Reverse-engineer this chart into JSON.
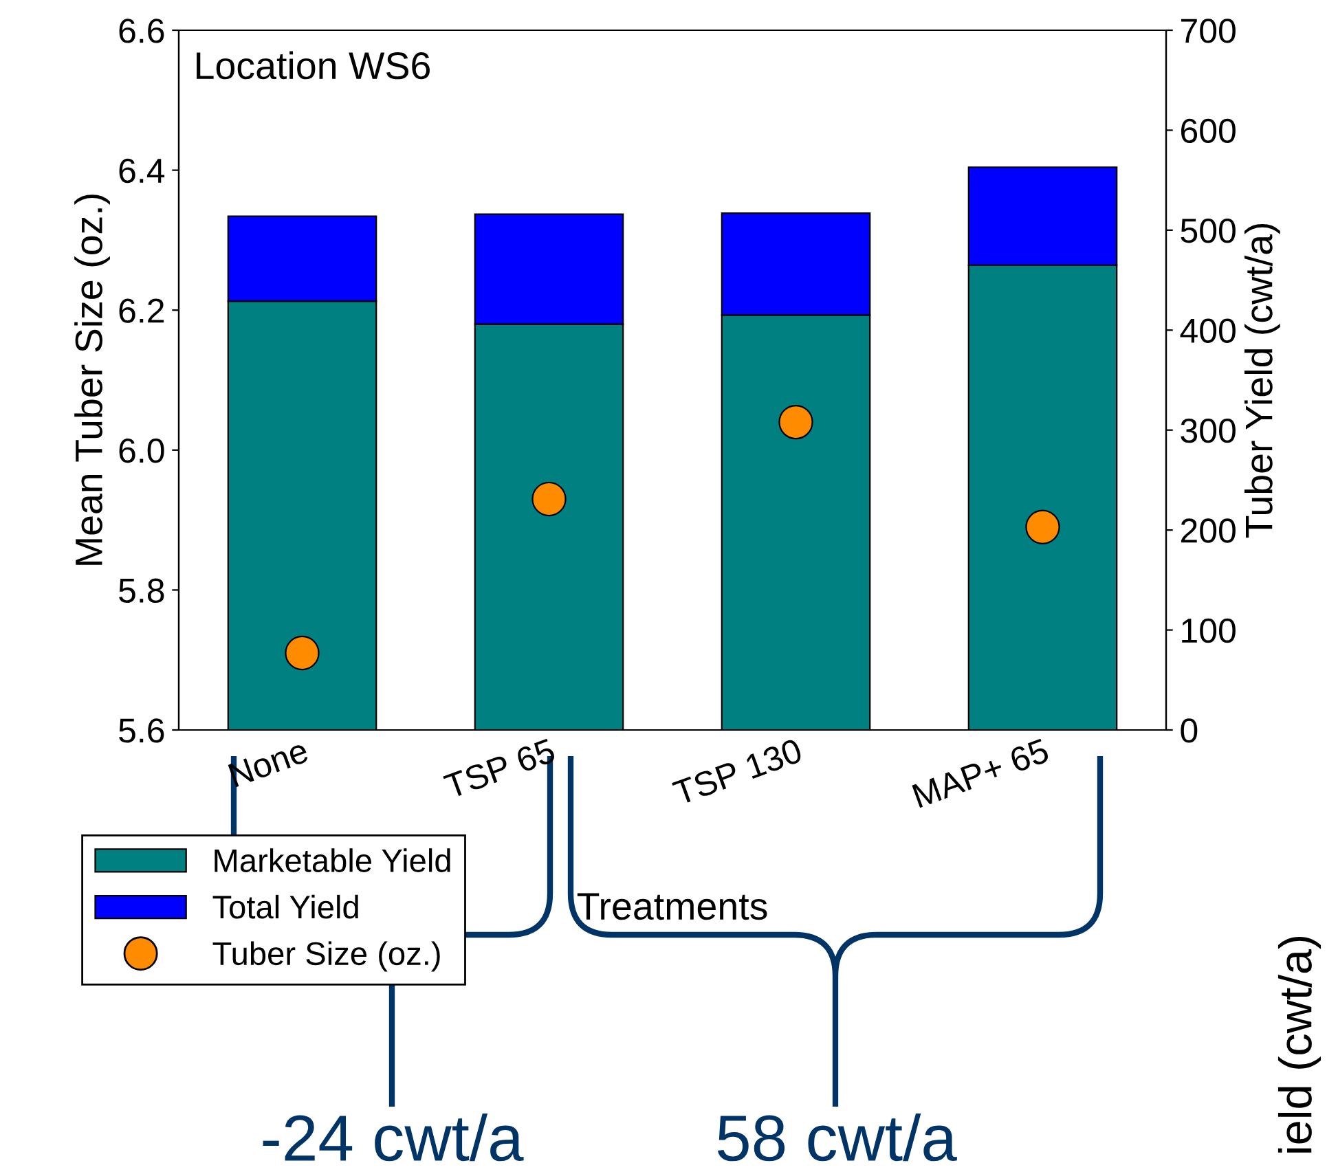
{
  "chart_data": {
    "type": "bar",
    "title": "Location WS6",
    "xlabel": "Treatments",
    "ylabel": "Mean Tuber Size (oz.)",
    "y2label": "Tuber Yield (cwt/a)",
    "categories": [
      "None",
      "TSP 65",
      "TSP 130",
      "MAP+ 65"
    ],
    "stacked": true,
    "series": [
      {
        "name": "Marketable Yield",
        "axis": "y2",
        "color": "#008080",
        "values": [
          429,
          406,
          415,
          465
        ]
      },
      {
        "name": "Total Yield",
        "axis": "y2",
        "color": "#0000ff",
        "values": [
          85,
          110,
          102,
          98
        ]
      },
      {
        "name": "Tuber Size (oz.)",
        "type": "scatter",
        "axis": "y",
        "color": "#ff8c00",
        "marker": "circle",
        "values": [
          5.71,
          5.93,
          6.04,
          5.89
        ]
      }
    ],
    "ylim": [
      5.6,
      6.6
    ],
    "yticks": [
      {
        "value": 5.6,
        "label": "5.6"
      },
      {
        "value": 5.8,
        "label": "5.8"
      },
      {
        "value": 6.0,
        "label": "6.0"
      },
      {
        "value": 6.2,
        "label": "6.2"
      },
      {
        "value": 6.4,
        "label": "6.4"
      },
      {
        "value": 6.6,
        "label": "6.6"
      }
    ],
    "y2lim": [
      0,
      700
    ],
    "y2ticks": [
      0,
      100,
      200,
      300,
      400,
      500,
      600,
      700
    ],
    "legend": "bottom left",
    "grid": false,
    "annotations": [
      "-24 cwt/a",
      "58 cwt/a",
      "ield (cwt/a)"
    ]
  }
}
